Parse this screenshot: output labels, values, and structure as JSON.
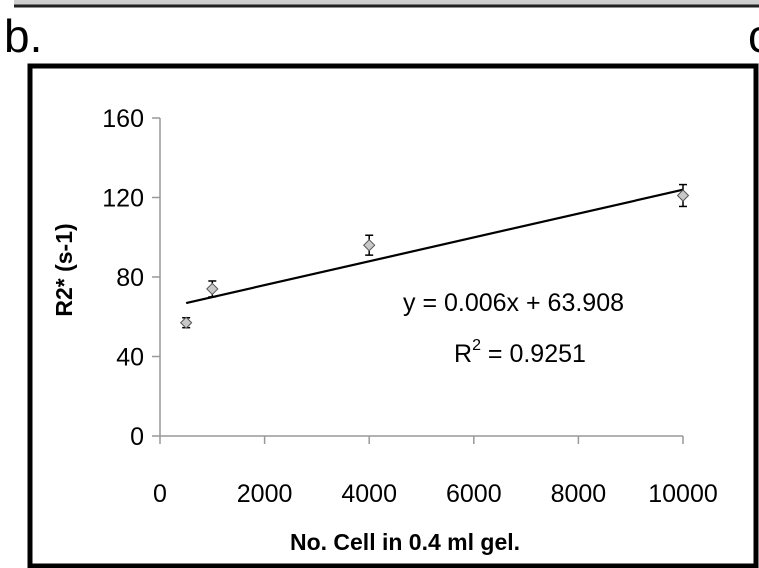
{
  "figure": {
    "panel_label": "b.",
    "cropped_neighbor_label": "c"
  },
  "chart_data": {
    "type": "scatter",
    "title": "",
    "xlabel": "No. Cell in 0.4 ml gel.",
    "ylabel": "R2* (s-1)",
    "xlim": [
      0,
      10000
    ],
    "ylim": [
      0,
      160
    ],
    "xticks": [
      0,
      2000,
      4000,
      6000,
      8000,
      10000
    ],
    "yticks": [
      0,
      40,
      80,
      120,
      160
    ],
    "grid": false,
    "legend": "none",
    "marker": "diamond",
    "marker_color": "#c8c8c8",
    "series": [
      {
        "x": [
          500,
          1000,
          4000,
          10000
        ],
        "y": [
          57,
          74,
          96,
          121
        ],
        "error": [
          2.5,
          4,
          5,
          5.5
        ]
      }
    ],
    "trendline": {
      "slope": 0.006,
      "intercept": 63.908,
      "x_range": [
        500,
        10000
      ],
      "equation_base": "y = 0.006x + 63.908",
      "r2_prefix": "R",
      "r2_sup": "2",
      "r2_suffix": " = 0.9251"
    }
  }
}
